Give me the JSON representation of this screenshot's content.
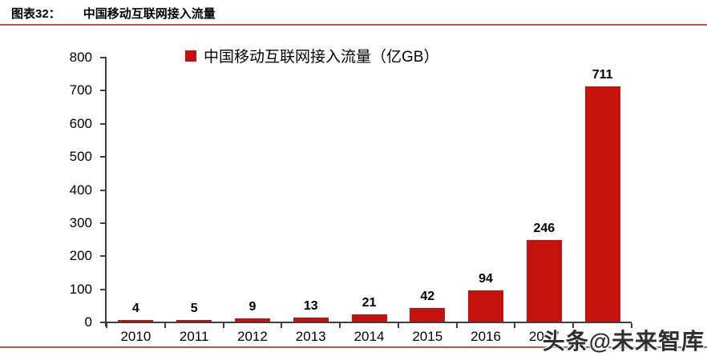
{
  "header": {
    "label": "图表32：",
    "title": "中国移动互联网接入流量"
  },
  "watermark": "头条@未来智库",
  "colors": {
    "bar": "#C5120F",
    "rule": "#C0544B",
    "axis": "#3F3F3F",
    "text": "#000000"
  },
  "chart_data": {
    "type": "bar",
    "title": "中国移动互联网接入流量",
    "legend": [
      "中国移动互联网接入流量（亿GB）"
    ],
    "categories": [
      "2010",
      "2011",
      "2012",
      "2013",
      "2014",
      "2015",
      "2016",
      "2017",
      ""
    ],
    "values": [
      4,
      5,
      9,
      13,
      21,
      42,
      94,
      246,
      711
    ],
    "xlabel": "",
    "ylabel": "",
    "ylim": [
      0,
      800
    ],
    "ytick_step": 100,
    "grid": false,
    "legend_position": "top",
    "value_labels": true,
    "bar_color": "#C5120F"
  }
}
